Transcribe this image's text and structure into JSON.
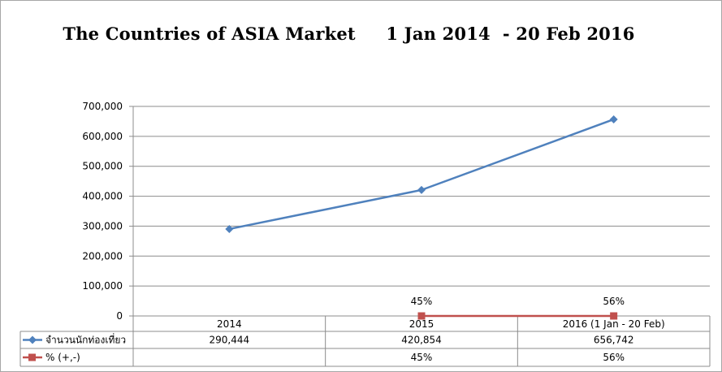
{
  "chart_data": {
    "type": "line",
    "title": "The Countries of ASIA Market     1 Jan 2014  - 20 Feb 2016",
    "categories": [
      "2014",
      "2015",
      "2016 (1 Jan - 20 Feb)"
    ],
    "yticks": [
      "700,000",
      "600,000",
      "500,000",
      "400,000",
      "300,000",
      "200,000",
      "100,000",
      "0"
    ],
    "ylim": [
      0,
      700000
    ],
    "grid": true,
    "legend_position": "data-table",
    "series": [
      {
        "name": "จำนวนนักท่องเที่ยว",
        "values": [
          290444,
          420854,
          656742
        ],
        "display": [
          "290,444",
          "420,854",
          "656,742"
        ],
        "color": "#4f81bd",
        "marker": "diamond"
      },
      {
        "name": "% (+,-)",
        "values": [
          null,
          0,
          0
        ],
        "display": [
          "",
          "45%",
          "56%"
        ],
        "point_labels": [
          "",
          "45%",
          "56%"
        ],
        "color": "#c0504d",
        "marker": "square"
      }
    ]
  }
}
